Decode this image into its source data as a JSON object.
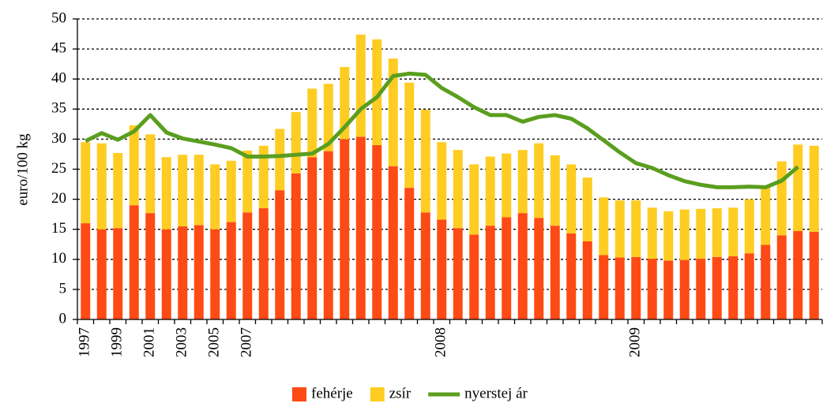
{
  "chart_data": {
    "type": "bar",
    "stacked": true,
    "y_label": "euro/100 kg",
    "categories": [
      "1997",
      null,
      "1999",
      null,
      "2001",
      null,
      "2003",
      null,
      "2005",
      null,
      "2007",
      null,
      null,
      null,
      null,
      null,
      null,
      null,
      null,
      null,
      null,
      null,
      "2008",
      null,
      null,
      null,
      null,
      null,
      null,
      null,
      null,
      null,
      null,
      null,
      "2009",
      null,
      null,
      null,
      null,
      null,
      null,
      null,
      null,
      null,
      null,
      null
    ],
    "series": [
      {
        "name": "fehérje",
        "color": "#fe4a14",
        "values": [
          16,
          15,
          15.2,
          19,
          17.7,
          15,
          15.5,
          15.7,
          15,
          16.2,
          17.8,
          18.5,
          21.5,
          24.3,
          27,
          28,
          30,
          30.4,
          29,
          25.5,
          21.9,
          17.8,
          16.6,
          15.2,
          14.1,
          15.6,
          17,
          17.7,
          16.9,
          15.6,
          14.3,
          13,
          10.7,
          10.3,
          10.4,
          10.1,
          9.8,
          9.9,
          10.1,
          10.4,
          10.5,
          11,
          12.4,
          14,
          14.7,
          14.6
        ]
      },
      {
        "name": "zsír",
        "color": "#ffcc22",
        "values": [
          13.5,
          14.3,
          12.5,
          13.3,
          13.1,
          12,
          11.9,
          11.7,
          10.8,
          10.2,
          10.3,
          10.4,
          10.2,
          10.2,
          11.4,
          11.2,
          12,
          17,
          17.6,
          17.9,
          17.5,
          17.1,
          12.9,
          13,
          11.7,
          11.5,
          10.6,
          10.5,
          12.4,
          11.7,
          11.5,
          10.6,
          9.6,
          9.5,
          9.4,
          8.5,
          8.2,
          8.4,
          8.3,
          8.1,
          8.1,
          9,
          9.9,
          12.3,
          14.4,
          14.3
        ]
      },
      {
        "name": "nyerstej ár",
        "color": "#5a9e1e",
        "type": "line",
        "values": [
          29.7,
          31,
          29.9,
          31.3,
          34,
          31.1,
          30.1,
          29.6,
          29.1,
          28.5,
          27.1,
          27.1,
          27.2,
          27.4,
          27.6,
          29.2,
          32,
          35,
          37,
          40.5,
          40.9,
          40.7,
          38.5,
          37,
          35.3,
          34,
          34,
          32.9,
          33.7,
          34,
          33.4,
          31.8,
          29.8,
          27.8,
          26,
          25.2,
          24,
          23,
          22.4,
          22,
          22,
          22.1,
          22,
          23.1,
          25.4,
          null
        ]
      }
    ],
    "ylim": [
      0,
      50
    ],
    "yticks": [
      0,
      5,
      10,
      15,
      20,
      25,
      30,
      35,
      40,
      45,
      50
    ],
    "grid": true
  }
}
